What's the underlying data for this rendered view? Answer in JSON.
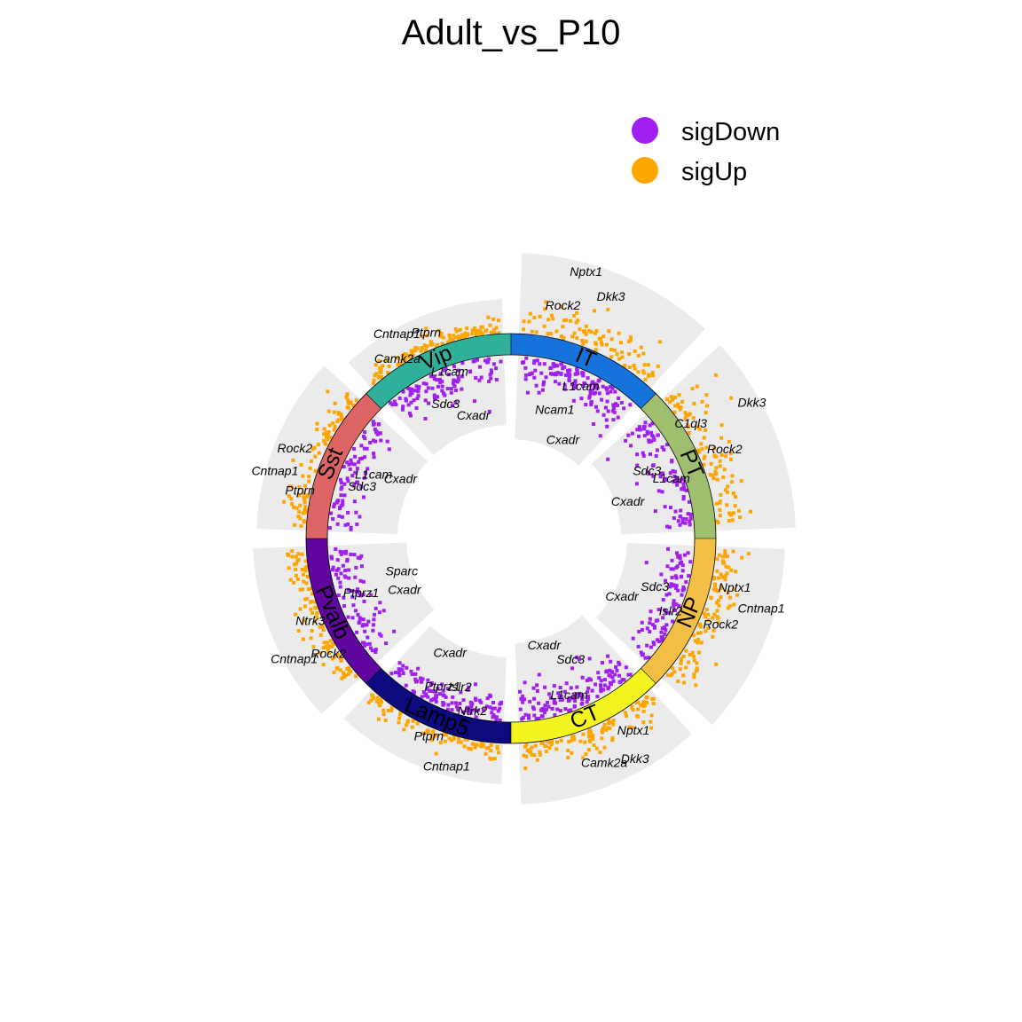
{
  "title": "Adult_vs_P10",
  "legend": [
    {
      "label": "sigDown",
      "color": "#A020F0"
    },
    {
      "label": "sigUp",
      "color": "#FFA500"
    }
  ],
  "colors": {
    "sigDown": "#A020F0",
    "sigUp": "#FFA500",
    "panel_bg": "#EBEBEB"
  },
  "chart_data": {
    "type": "scatter",
    "layout": "circular",
    "title": "Adult_vs_P10",
    "series": [
      {
        "name": "sigDown",
        "color": "#A020F0"
      },
      {
        "name": "sigUp",
        "color": "#FFA500"
      }
    ],
    "segments": [
      {
        "name": "IT",
        "color": "#1673DB",
        "logFC_range": [
          -6.5,
          7.8
        ],
        "n_down": 130,
        "n_up": 95
      },
      {
        "name": "PT",
        "color": "#9FBF6E",
        "logFC_range": [
          -7.0,
          6.5
        ],
        "n_down": 95,
        "n_up": 95
      },
      {
        "name": "NP",
        "color": "#F2BE45",
        "logFC_range": [
          -6.3,
          5.8
        ],
        "n_down": 90,
        "n_up": 100
      },
      {
        "name": "CT",
        "color": "#F4F520",
        "logFC_range": [
          -5.5,
          7.8
        ],
        "n_down": 140,
        "n_up": 100
      },
      {
        "name": "Lamp5",
        "color": "#0D0A80",
        "logFC_range": [
          -4.8,
          5.0
        ],
        "n_down": 110,
        "n_up": 80
      },
      {
        "name": "Pvalb",
        "color": "#5E069E",
        "logFC_range": [
          -6.8,
          5.5
        ],
        "n_down": 90,
        "n_up": 90
      },
      {
        "name": "Sst",
        "color": "#DE6565",
        "logFC_range": [
          -5.2,
          5.5
        ],
        "n_down": 85,
        "n_up": 85
      },
      {
        "name": "Vip",
        "color": "#2EB09B",
        "logFC_range": [
          -5.0,
          4.5
        ],
        "n_down": 100,
        "n_up": 110
      }
    ],
    "gene_labels": [
      {
        "segment": "IT",
        "gene": "Nptx1",
        "logFC": 7.4
      },
      {
        "segment": "IT",
        "gene": "Dkk3",
        "logFC": 5.8
      },
      {
        "segment": "IT",
        "gene": "Rock2",
        "logFC": 3.4
      },
      {
        "segment": "IT",
        "gene": "L1cam",
        "logFC": -1.4
      },
      {
        "segment": "IT",
        "gene": "Ncam1",
        "logFC": -4.0
      },
      {
        "segment": "IT",
        "gene": "Cxadr",
        "logFC": -6.0
      },
      {
        "segment": "PT",
        "gene": "Dkk3",
        "logFC": 6.2
      },
      {
        "segment": "PT",
        "gene": "Rock2",
        "logFC": 2.3
      },
      {
        "segment": "PT",
        "gene": "C1ql3",
        "logFC": 0.7
      },
      {
        "segment": "PT",
        "gene": "L1cam",
        "logFC": -1.3
      },
      {
        "segment": "PT",
        "gene": "Sdc3",
        "logFC": -3.3
      },
      {
        "segment": "PT",
        "gene": "Cxadr",
        "logFC": -6.3
      },
      {
        "segment": "NP",
        "gene": "Cntnap1",
        "logFC": 5.0
      },
      {
        "segment": "NP",
        "gene": "Rock2",
        "logFC": 2.0
      },
      {
        "segment": "NP",
        "gene": "Nptx1",
        "logFC": 2.2
      },
      {
        "segment": "NP",
        "gene": "Islr2",
        "logFC": -0.8
      },
      {
        "segment": "NP",
        "gene": "Sdc3",
        "logFC": -3.2
      },
      {
        "segment": "NP",
        "gene": "Cxadr",
        "logFC": -5.9
      },
      {
        "segment": "CT",
        "gene": "Dkk3",
        "logFC": 6.8
      },
      {
        "segment": "CT",
        "gene": "Camk2a",
        "logFC": 5.4
      },
      {
        "segment": "CT",
        "gene": "Nptx1",
        "logFC": 3.3
      },
      {
        "segment": "CT",
        "gene": "L1cam",
        "logFC": -1.2
      },
      {
        "segment": "CT",
        "gene": "Sdc3",
        "logFC": -3.6
      },
      {
        "segment": "CT",
        "gene": "Cxadr",
        "logFC": -5.3
      },
      {
        "segment": "Lamp5",
        "gene": "Cntnap1",
        "logFC": 4.6
      },
      {
        "segment": "Lamp5",
        "gene": "Ptprn",
        "logFC": 1.4
      },
      {
        "segment": "Lamp5",
        "gene": "Ntrk2",
        "logFC": -0.5
      },
      {
        "segment": "Lamp5",
        "gene": "Ptprz1",
        "logFC": -1.6
      },
      {
        "segment": "Lamp5",
        "gene": "Islr2",
        "logFC": -2.1
      },
      {
        "segment": "Lamp5",
        "gene": "Cxadr",
        "logFC": -4.3
      },
      {
        "segment": "Pvalb",
        "gene": "Cntnap1",
        "logFC": 5.0
      },
      {
        "segment": "Pvalb",
        "gene": "Ntrk3",
        "logFC": 1.4
      },
      {
        "segment": "Pvalb",
        "gene": "Rock2",
        "logFC": 1.3
      },
      {
        "segment": "Pvalb",
        "gene": "Ptprz1",
        "logFC": -2.2
      },
      {
        "segment": "Pvalb",
        "gene": "Cxadr",
        "logFC": -6.0
      },
      {
        "segment": "Pvalb",
        "gene": "Sparc",
        "logFC": -6.4
      },
      {
        "segment": "Sst",
        "gene": "Cntnap1",
        "logFC": 5.0
      },
      {
        "segment": "Sst",
        "gene": "Rock2",
        "logFC": 3.6
      },
      {
        "segment": "Sst",
        "gene": "Ptprn",
        "logFC": 1.4
      },
      {
        "segment": "Sst",
        "gene": "L1cam",
        "logFC": -2.6
      },
      {
        "segment": "Sst",
        "gene": "Sdc3",
        "logFC": -2.1
      },
      {
        "segment": "Sst",
        "gene": "Cxadr",
        "logFC": -4.7
      },
      {
        "segment": "Vip",
        "gene": "Cntnap1",
        "logFC": 4.4
      },
      {
        "segment": "Vip",
        "gene": "Ptprn",
        "logFC": 2.6
      },
      {
        "segment": "Vip",
        "gene": "Camk2a",
        "logFC": 1.1
      },
      {
        "segment": "Vip",
        "gene": "L1cam",
        "logFC": -0.5
      },
      {
        "segment": "Vip",
        "gene": "Sdc3",
        "logFC": -2.7
      },
      {
        "segment": "Vip",
        "gene": "Cxadr",
        "logFC": -4.3
      }
    ]
  }
}
